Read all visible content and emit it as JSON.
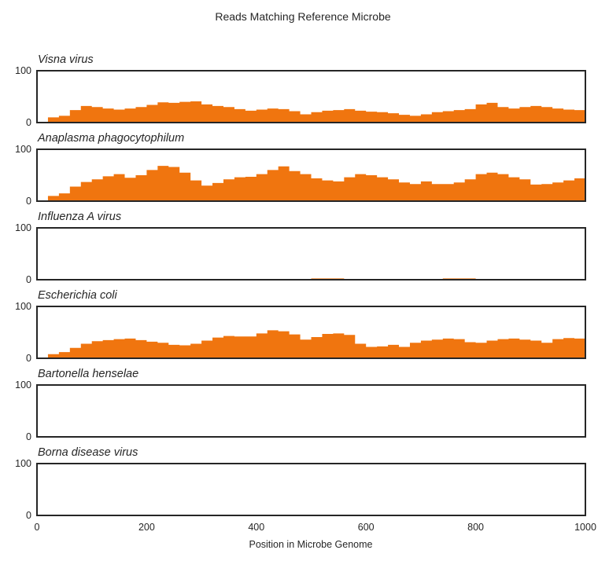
{
  "chart_data": {
    "type": "area",
    "title": "Reads Matching Reference Microbe",
    "xlabel": "Position in Microbe Genome",
    "ylabel": "",
    "xlim": [
      0,
      1000
    ],
    "ylim": [
      0,
      100
    ],
    "x_ticks": [
      0,
      200,
      400,
      600,
      800,
      1000
    ],
    "y_ticks": [
      0,
      100
    ],
    "grid": false,
    "fill_color": "#f0750f",
    "x": [
      0,
      20,
      40,
      60,
      80,
      100,
      120,
      140,
      160,
      180,
      200,
      220,
      240,
      260,
      280,
      300,
      320,
      340,
      360,
      380,
      400,
      420,
      440,
      460,
      480,
      500,
      520,
      540,
      560,
      580,
      600,
      620,
      640,
      660,
      680,
      700,
      720,
      740,
      760,
      780,
      800,
      820,
      840,
      860,
      880,
      900,
      920,
      940,
      960,
      980,
      1000
    ],
    "series": [
      {
        "name": "Visna virus",
        "values": [
          0,
          10,
          13,
          24,
          32,
          30,
          27,
          25,
          27,
          30,
          34,
          39,
          38,
          40,
          41,
          35,
          32,
          30,
          26,
          23,
          25,
          27,
          26,
          22,
          16,
          20,
          23,
          24,
          26,
          23,
          21,
          20,
          18,
          15,
          13,
          16,
          20,
          22,
          24,
          26,
          35,
          38,
          30,
          27,
          30,
          32,
          30,
          27,
          25,
          24,
          27
        ]
      },
      {
        "name": "Anaplasma phagocytophilum",
        "values": [
          0,
          10,
          15,
          28,
          37,
          42,
          48,
          52,
          45,
          50,
          60,
          68,
          66,
          55,
          40,
          30,
          35,
          42,
          46,
          47,
          52,
          60,
          67,
          58,
          52,
          44,
          40,
          38,
          46,
          52,
          50,
          46,
          42,
          36,
          33,
          38,
          33,
          33,
          36,
          42,
          52,
          55,
          52,
          46,
          42,
          32,
          33,
          36,
          40,
          44,
          46
        ]
      },
      {
        "name": "Influenza A virus",
        "values": [
          0,
          0,
          0,
          0,
          0,
          0,
          0,
          0,
          0,
          0,
          0,
          0,
          0,
          0,
          0,
          0,
          0,
          0,
          0,
          0,
          0,
          0,
          0,
          0,
          0,
          2.5,
          2.5,
          2.5,
          0,
          0,
          0,
          0,
          0,
          0,
          0,
          0,
          0,
          2.5,
          2.5,
          2.5,
          0,
          0,
          0,
          0,
          0,
          0,
          0,
          0,
          0,
          0,
          0
        ]
      },
      {
        "name": "Escherichia coli",
        "values": [
          0,
          8,
          12,
          20,
          28,
          33,
          35,
          37,
          38,
          35,
          32,
          30,
          26,
          25,
          28,
          34,
          40,
          43,
          42,
          42,
          48,
          54,
          52,
          46,
          36,
          41,
          47,
          48,
          45,
          28,
          22,
          23,
          26,
          22,
          30,
          34,
          36,
          38,
          37,
          31,
          30,
          34,
          37,
          38,
          36,
          34,
          30,
          37,
          39,
          38,
          40
        ]
      },
      {
        "name": "Bartonella henselae",
        "values": [
          0,
          0,
          0,
          0,
          0,
          0,
          0,
          0,
          0,
          0,
          0,
          0,
          0,
          0,
          0,
          0,
          0,
          0,
          0,
          0,
          0,
          0,
          0,
          0,
          0,
          0,
          0,
          0,
          0,
          0,
          0,
          0,
          0,
          0,
          0,
          0,
          0,
          0,
          0,
          0,
          0,
          1.5,
          0,
          1.5,
          1.5,
          0,
          0,
          0,
          0,
          0,
          0
        ]
      },
      {
        "name": "Borna disease virus",
        "values": [
          0,
          0,
          0,
          0,
          0,
          0,
          0,
          0,
          0,
          0,
          0,
          0,
          0,
          0,
          0,
          0,
          0,
          0,
          0,
          0,
          0,
          0,
          0,
          0,
          0,
          0,
          0,
          0,
          0,
          0,
          0,
          0,
          0,
          0,
          0,
          0,
          0,
          0,
          0,
          0,
          0,
          0,
          0,
          0,
          0,
          0,
          0,
          0,
          0,
          0,
          0
        ]
      }
    ]
  }
}
